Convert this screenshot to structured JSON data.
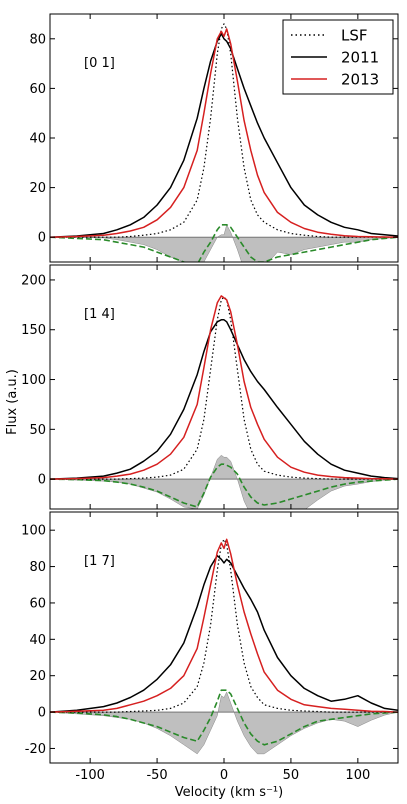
{
  "chart_data": {
    "type": "line",
    "xlabel": "Velocity (km s⁻¹)",
    "ylabel": "Flux (a.u.)",
    "xlim": [
      -130,
      130
    ],
    "xticks": [
      -100,
      -50,
      0,
      50,
      100
    ],
    "legend": {
      "placement": "top-right",
      "entries": [
        {
          "name": "LSF",
          "color": "#000000",
          "style": "dotted"
        },
        {
          "name": "2011",
          "color": "#000000",
          "style": "solid"
        },
        {
          "name": "2013",
          "color": "#d62020",
          "style": "solid"
        }
      ]
    },
    "colors": {
      "y2011": "#000000",
      "y2013": "#d62020",
      "lsf": "#000000",
      "diff_fill": "#bfbfbf",
      "model": "#2a8a2a"
    },
    "panels": [
      {
        "label": "[0 1]",
        "ylim": [
          -10,
          90
        ],
        "yticks": [
          0,
          20,
          40,
          60,
          80
        ],
        "x": [
          -130,
          -110,
          -90,
          -80,
          -70,
          -60,
          -50,
          -40,
          -30,
          -20,
          -15,
          -10,
          -5,
          -2,
          0,
          2,
          5,
          10,
          15,
          20,
          25,
          30,
          40,
          50,
          60,
          70,
          80,
          90,
          100,
          110,
          120,
          130
        ],
        "y2011": [
          0,
          0.5,
          1.5,
          3,
          5,
          8,
          13,
          20,
          31,
          48,
          60,
          71,
          79,
          82,
          80,
          79,
          76,
          68,
          60,
          53,
          46,
          40,
          30,
          20,
          13,
          9,
          6,
          4,
          3,
          1.5,
          1,
          0.5
        ],
        "y2013": [
          0,
          0.3,
          0.8,
          1.5,
          2.5,
          4,
          7,
          12,
          20,
          35,
          50,
          66,
          80,
          83,
          81,
          84,
          78,
          63,
          47,
          35,
          25,
          18,
          10,
          6,
          3.5,
          2,
          1.2,
          0.6,
          0.3,
          0.2,
          0.1,
          0
        ],
        "lsf": [
          0,
          0,
          0,
          0,
          0.3,
          0.8,
          1.5,
          3,
          6,
          15,
          28,
          48,
          74,
          84,
          86,
          84,
          74,
          48,
          28,
          15,
          9,
          6,
          3,
          1.5,
          0.8,
          0.3,
          0,
          0,
          0,
          0,
          0,
          0
        ],
        "diff": [
          0,
          0,
          -0.3,
          -1,
          -2,
          -3,
          -5,
          -8,
          -10,
          -13,
          -10,
          -5,
          0,
          1,
          1,
          5,
          2,
          -5,
          -13,
          -18,
          -16,
          -12,
          -6,
          -7,
          -5,
          -4,
          -3,
          -2,
          -2,
          -1,
          -0.5,
          0
        ],
        "model": [
          0,
          -0.5,
          -1,
          -2,
          -3,
          -4,
          -6,
          -8,
          -10,
          -11,
          -6,
          -2,
          3,
          5,
          5,
          5,
          4,
          0,
          -4,
          -8,
          -10,
          -10,
          -8,
          -7,
          -6,
          -5,
          -4,
          -3,
          -2,
          -1,
          -0.5,
          0
        ]
      },
      {
        "label": "[1 4]",
        "ylim": [
          -30,
          215
        ],
        "yticks": [
          0,
          50,
          100,
          150,
          200
        ],
        "x": [
          -130,
          -110,
          -90,
          -80,
          -70,
          -60,
          -50,
          -40,
          -30,
          -20,
          -15,
          -10,
          -5,
          -2,
          0,
          2,
          5,
          10,
          15,
          20,
          25,
          30,
          40,
          50,
          60,
          70,
          80,
          90,
          100,
          110,
          120,
          130
        ],
        "y2011": [
          0,
          1,
          3,
          6,
          10,
          18,
          28,
          45,
          70,
          105,
          128,
          148,
          158,
          160,
          160,
          158,
          150,
          135,
          120,
          108,
          98,
          90,
          72,
          55,
          38,
          25,
          15,
          9,
          6,
          3,
          1.5,
          0.5
        ],
        "y2013": [
          0,
          0.5,
          1.5,
          3,
          5,
          9,
          15,
          25,
          42,
          75,
          112,
          150,
          177,
          184,
          182,
          180,
          168,
          135,
          98,
          72,
          55,
          40,
          22,
          12,
          7,
          4,
          2.5,
          1.5,
          1,
          0.5,
          0.3,
          0
        ],
        "lsf": [
          0,
          0,
          0,
          0,
          0.5,
          1,
          2,
          4,
          10,
          30,
          60,
          110,
          160,
          180,
          183,
          180,
          160,
          110,
          60,
          30,
          15,
          8,
          4,
          2,
          1,
          0.5,
          0,
          0,
          0,
          0,
          0,
          0
        ],
        "diff": [
          0,
          -1,
          -2,
          -3,
          -5,
          -9,
          -13,
          -20,
          -28,
          -30,
          -16,
          2,
          20,
          24,
          22,
          22,
          18,
          0,
          -22,
          -36,
          -43,
          -50,
          -50,
          -43,
          -31,
          -21,
          -12,
          -7,
          -5,
          -2.5,
          -1,
          0
        ],
        "model": [
          0,
          -0.5,
          -1.5,
          -3,
          -5,
          -8,
          -12,
          -18,
          -24,
          -28,
          -14,
          2,
          12,
          15,
          15,
          14,
          12,
          5,
          -8,
          -18,
          -24,
          -26,
          -24,
          -20,
          -16,
          -12,
          -8,
          -5,
          -3,
          -2,
          -1,
          0
        ]
      },
      {
        "label": "[1 7]",
        "ylim": [
          -28,
          110
        ],
        "yticks": [
          -20,
          0,
          20,
          40,
          60,
          80,
          100
        ],
        "x": [
          -130,
          -110,
          -90,
          -80,
          -70,
          -60,
          -50,
          -40,
          -30,
          -20,
          -15,
          -10,
          -5,
          -2,
          0,
          2,
          5,
          10,
          15,
          20,
          25,
          30,
          40,
          50,
          60,
          70,
          80,
          90,
          100,
          110,
          120,
          130
        ],
        "y2011": [
          0,
          1,
          3,
          5,
          8,
          12,
          18,
          26,
          38,
          58,
          70,
          80,
          86,
          84,
          82,
          84,
          82,
          75,
          68,
          62,
          55,
          45,
          30,
          20,
          13,
          9,
          6,
          7,
          9,
          5,
          2,
          1
        ],
        "y2013": [
          0,
          0.5,
          1,
          2,
          4,
          6,
          9,
          13,
          20,
          35,
          52,
          70,
          88,
          93,
          90,
          95,
          87,
          70,
          55,
          43,
          32,
          22,
          12,
          7,
          4,
          3,
          2,
          1.5,
          1,
          0.5,
          0.3,
          0
        ],
        "lsf": [
          0,
          0,
          0,
          0,
          0.3,
          0.6,
          1,
          2,
          5,
          14,
          27,
          48,
          78,
          92,
          95,
          92,
          78,
          48,
          27,
          14,
          8,
          4,
          2,
          1,
          0.6,
          0.3,
          0,
          0,
          0,
          0,
          0,
          0
        ],
        "diff": [
          0,
          -1,
          -2,
          -3,
          -4,
          -6,
          -9,
          -13,
          -18,
          -23,
          -18,
          -10,
          -2,
          9,
          8,
          11,
          5,
          -5,
          -13,
          -19,
          -23,
          -23,
          -18,
          -13,
          -9,
          -6,
          -4,
          -5,
          -8,
          -4.5,
          -1.7,
          0
        ],
        "model": [
          0,
          -0.5,
          -1.5,
          -2.5,
          -4,
          -6,
          -8,
          -11,
          -14,
          -16,
          -10,
          -3,
          6,
          12,
          12,
          12,
          10,
          2,
          -6,
          -12,
          -16,
          -18,
          -16,
          -12,
          -8,
          -5,
          -4,
          -3,
          -2,
          -1,
          -0.5,
          0
        ]
      }
    ]
  }
}
